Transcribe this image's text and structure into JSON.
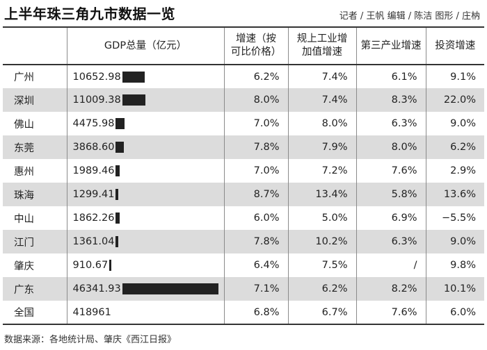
{
  "header": {
    "title": "上半年珠三角九市数据一览",
    "credits": "记者 / 王帆  编辑 / 陈洁  图形 / 庄枘"
  },
  "table": {
    "columns": [
      "",
      "GDP总量（亿元）",
      "增速（按可比价格）",
      "规上工业增加值增速",
      "第三产业增速",
      "投资增速"
    ],
    "column_lines": [
      [
        ""
      ],
      [
        "GDP总量（亿元）"
      ],
      [
        "增速（按",
        "可比价格）"
      ],
      [
        "规上工业增",
        "加值增速"
      ],
      [
        "第三产业增速"
      ],
      [
        "投资增速"
      ]
    ],
    "rows": [
      {
        "city": "广州",
        "gdp": "10652.98",
        "gdp_value": 10652.98,
        "growth": "6.2%",
        "industry": "7.4%",
        "tertiary": "6.1%",
        "investment": "9.1%"
      },
      {
        "city": "深圳",
        "gdp": "11009.38",
        "gdp_value": 11009.38,
        "growth": "8.0%",
        "industry": "7.4%",
        "tertiary": "8.3%",
        "investment": "22.0%"
      },
      {
        "city": "佛山",
        "gdp": "4475.98",
        "gdp_value": 4475.98,
        "growth": "7.0%",
        "industry": "8.0%",
        "tertiary": "6.3%",
        "investment": "9.0%"
      },
      {
        "city": "东莞",
        "gdp": "3868.60",
        "gdp_value": 3868.6,
        "growth": "7.8%",
        "industry": "7.9%",
        "tertiary": "8.0%",
        "investment": "6.2%"
      },
      {
        "city": "惠州",
        "gdp": "1989.46",
        "gdp_value": 1989.46,
        "growth": "7.0%",
        "industry": "7.2%",
        "tertiary": "7.6%",
        "investment": "2.9%"
      },
      {
        "city": "珠海",
        "gdp": "1299.41",
        "gdp_value": 1299.41,
        "growth": "8.7%",
        "industry": "13.4%",
        "tertiary": "5.8%",
        "investment": "13.6%"
      },
      {
        "city": "中山",
        "gdp": "1862.26",
        "gdp_value": 1862.26,
        "growth": "6.0%",
        "industry": "5.0%",
        "tertiary": "6.9%",
        "investment": "−5.5%"
      },
      {
        "city": "江门",
        "gdp": "1361.04",
        "gdp_value": 1361.04,
        "growth": "7.8%",
        "industry": "10.2%",
        "tertiary": "6.3%",
        "investment": "9.0%"
      },
      {
        "city": "肇庆",
        "gdp": "910.67",
        "gdp_value": 910.67,
        "growth": "6.4%",
        "industry": "7.5%",
        "tertiary": "/",
        "investment": "9.8%"
      },
      {
        "city": "广东",
        "gdp": "46341.93",
        "gdp_value": 46341.93,
        "growth": "7.1%",
        "industry": "6.2%",
        "tertiary": "8.2%",
        "investment": "10.1%"
      },
      {
        "city": "全国",
        "gdp": "418961",
        "gdp_value": null,
        "growth": "6.8%",
        "industry": "6.7%",
        "tertiary": "7.6%",
        "investment": "6.0%"
      }
    ]
  },
  "footer": {
    "source": "数据来源：各地统计局、肇庆《西江日报》"
  },
  "colors": {
    "bar": "#222222",
    "stripe": "#dcdcdc",
    "rule": "#333333"
  }
}
